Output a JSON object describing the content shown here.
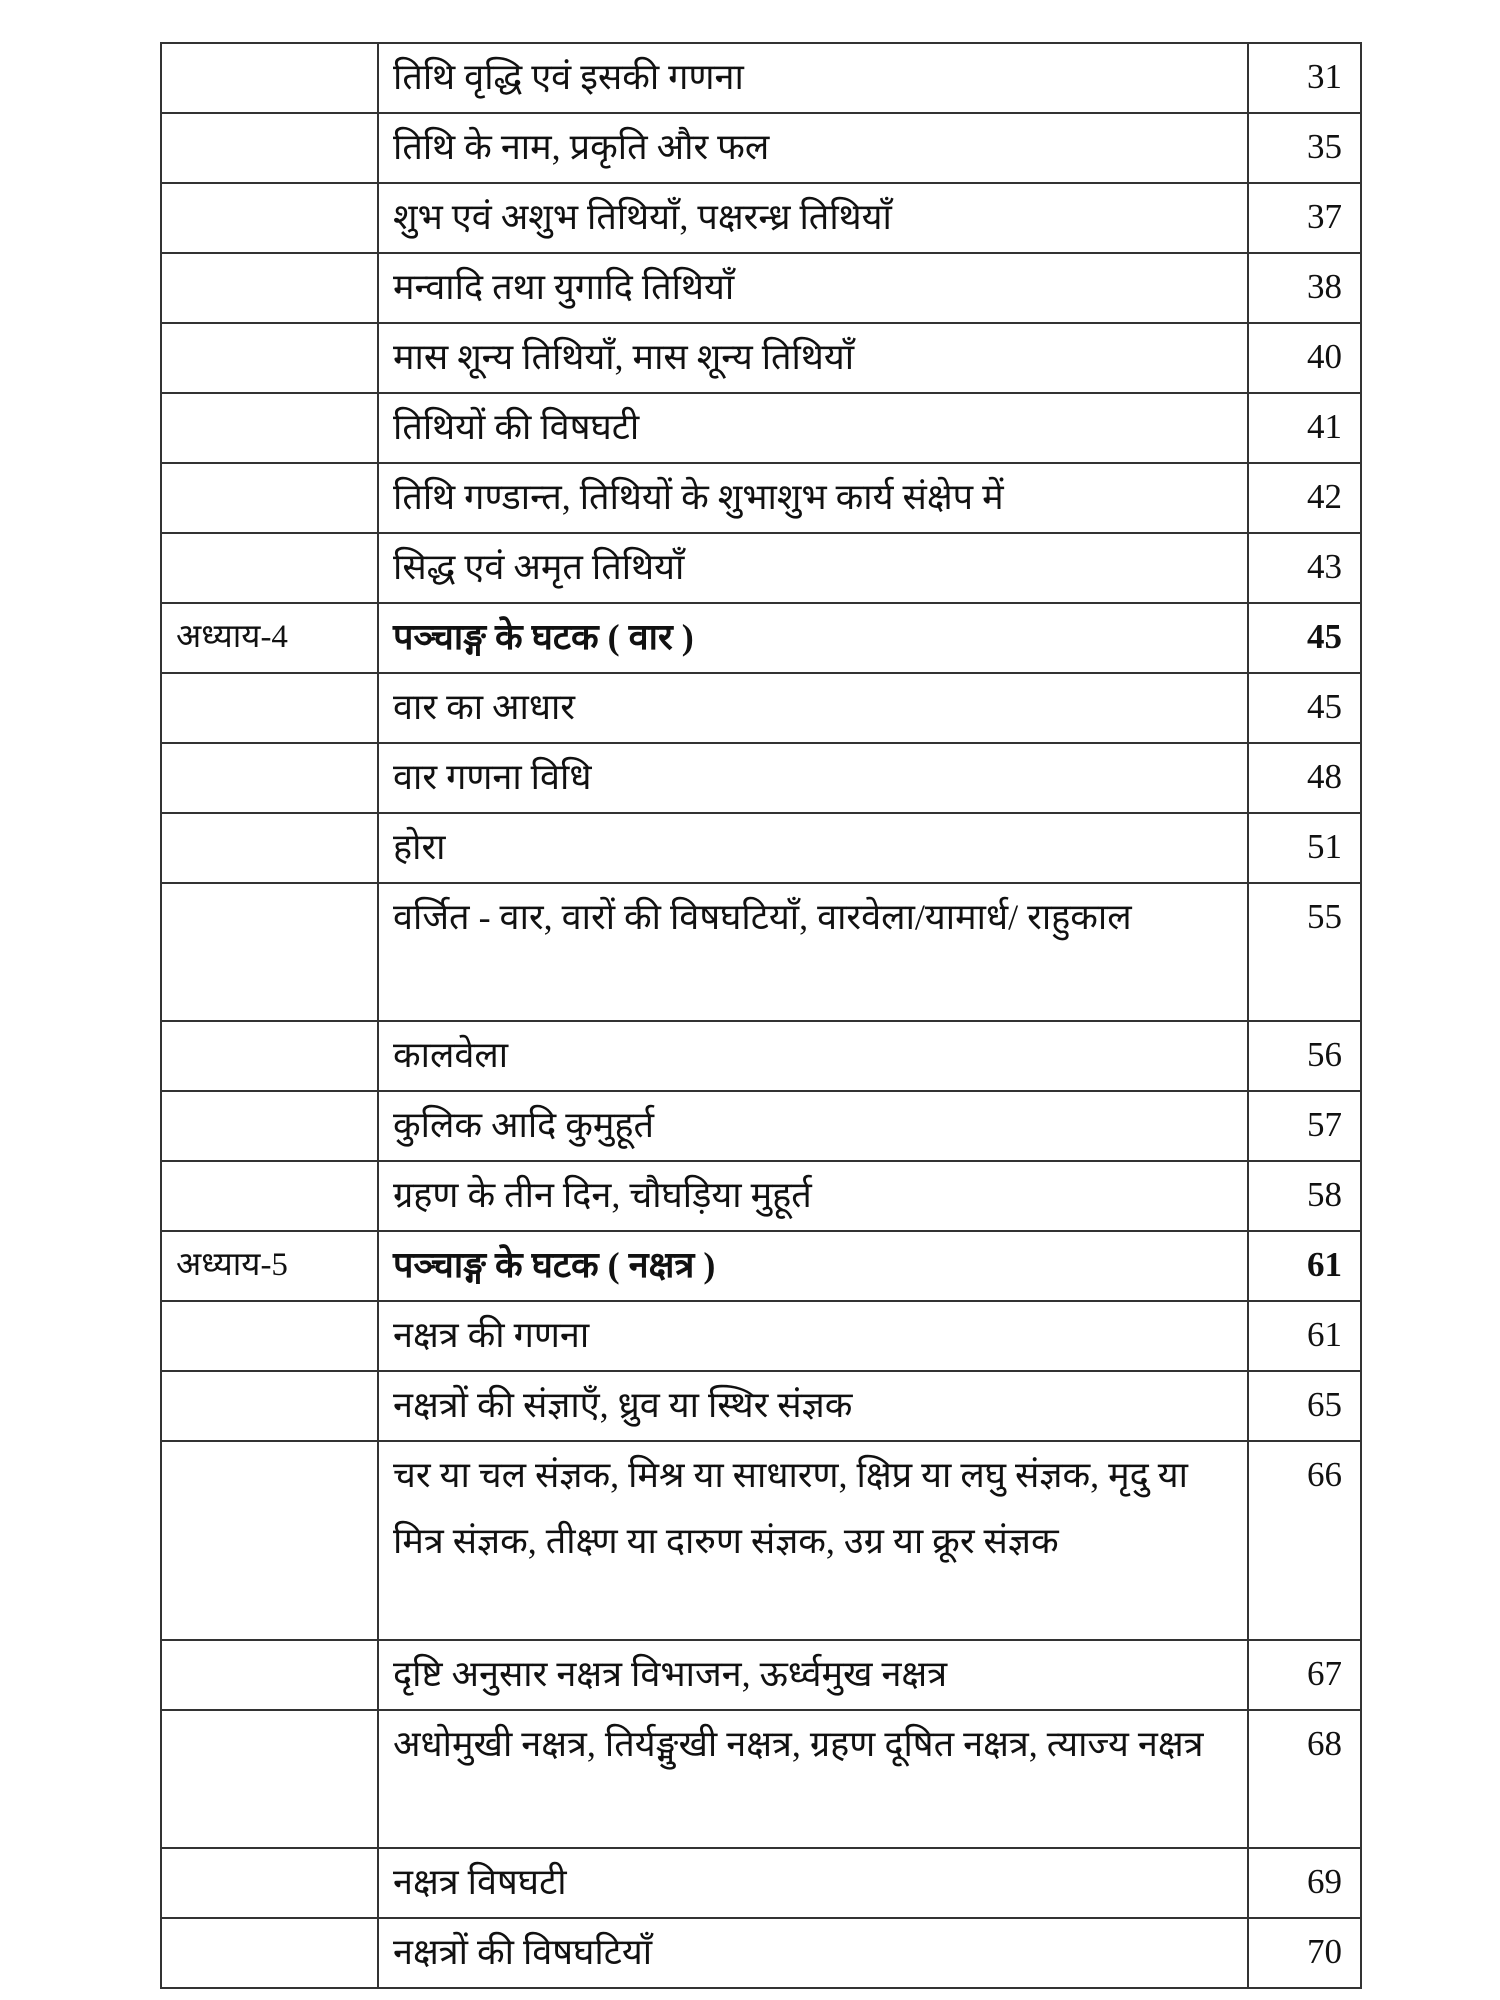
{
  "rows": [
    {
      "chapter": "",
      "title": "तिथि वृद्धि एवं इसकी गणना",
      "page": "31"
    },
    {
      "chapter": "",
      "title": "तिथि के नाम, प्रकृति और फल",
      "page": "35"
    },
    {
      "chapter": "",
      "title": "शुभ एवं अशुभ तिथियाँ, पक्षरन्ध्र तिथियाँ",
      "page": "37"
    },
    {
      "chapter": "",
      "title": "मन्वादि तथा युगादि तिथियाँ",
      "page": "38"
    },
    {
      "chapter": "",
      "title": "मास शून्य तिथियाँ, मास शून्य तिथियाँ",
      "page": "40"
    },
    {
      "chapter": "",
      "title": "तिथियों की विषघटी",
      "page": "41"
    },
    {
      "chapter": "",
      "title": "तिथि गण्डान्त, तिथियों के शुभाशुभ कार्य संक्षेप में",
      "page": "42"
    },
    {
      "chapter": "",
      "title": "सिद्ध एवं अमृत तिथियाँ",
      "page": "43"
    },
    {
      "chapter": "अध्याय-4",
      "title": "पञ्चाङ्ग के घटक ( वार )",
      "page": "45",
      "heading": true
    },
    {
      "chapter": "",
      "title": "वार का आधार",
      "page": "45"
    },
    {
      "chapter": "",
      "title": "वार गणना विधि",
      "page": "48"
    },
    {
      "chapter": "",
      "title": "होरा",
      "page": "51"
    },
    {
      "chapter": "",
      "title": "वर्जित - वार, वारों की विषघटियाँ, वारवेला/यामार्ध/ राहुकाल",
      "page": "55"
    },
    {
      "chapter": "",
      "title": "कालवेला",
      "page": "56"
    },
    {
      "chapter": "",
      "title": "कुलिक आदि कुमुहूर्त",
      "page": "57"
    },
    {
      "chapter": "",
      "title": "ग्रहण के तीन दिन, चौघड़िया मुहूर्त",
      "page": "58"
    },
    {
      "chapter": "अध्याय-5",
      "title": "पञ्चाङ्ग के घटक ( नक्षत्र )",
      "page": "61",
      "heading": true
    },
    {
      "chapter": "",
      "title": "नक्षत्र की गणना",
      "page": "61"
    },
    {
      "chapter": "",
      "title": "नक्षत्रों की संज्ञाएँ, ध्रुव या स्थिर संज्ञक",
      "page": "65"
    },
    {
      "chapter": "",
      "title": "चर या चल संज्ञक, मिश्र या साधारण, क्षिप्र या लघु संज्ञक, मृदु या मित्र संज्ञक, तीक्ष्ण या दारुण संज्ञक, उग्र या क्रूर संज्ञक",
      "page": "66"
    },
    {
      "chapter": "",
      "title": "दृष्टि अनुसार नक्षत्र विभाजन, ऊर्ध्वमुख नक्षत्र",
      "page": "67"
    },
    {
      "chapter": "",
      "title": "अधोमुखी नक्षत्र, तिर्यङ्मुखी नक्षत्र, ग्रहण दूषित नक्षत्र, त्याज्य नक्षत्र",
      "page": "68"
    },
    {
      "chapter": "",
      "title": "नक्षत्र विषघटी",
      "page": "69"
    },
    {
      "chapter": "",
      "title": "नक्षत्रों की विषघटियाँ",
      "page": "70"
    }
  ]
}
